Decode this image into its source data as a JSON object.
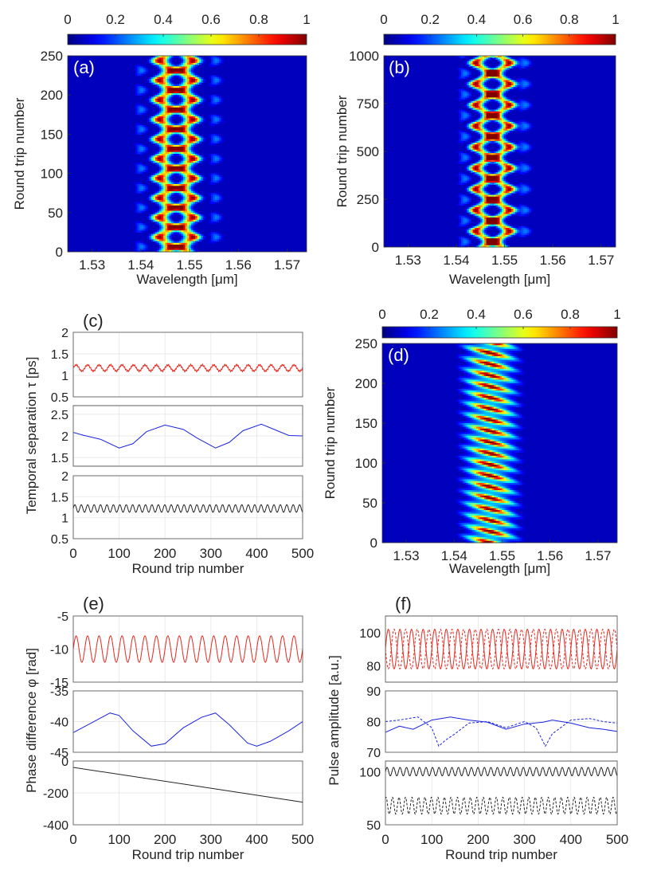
{
  "colorbar": {
    "ticks": [
      "0",
      "0.2",
      "0.4",
      "0.6",
      "0.8",
      "1"
    ]
  },
  "common": {
    "xlabel_wavelength": "Wavelength [μm]",
    "xlabel_roundtrip": "Round trip number",
    "ylabel_roundtrip": "Round trip number"
  },
  "chart_data": [
    {
      "id": "a",
      "type": "heatmap",
      "label": "(a)",
      "xlabel": "Wavelength [μm]",
      "ylabel": "Round trip number",
      "xlim": [
        1.525,
        1.574
      ],
      "ylim": [
        0,
        250
      ],
      "xticks": [
        1.53,
        1.54,
        1.55,
        1.56,
        1.57
      ],
      "xtick_labels": [
        "1.53",
        "1.54",
        "1.55",
        "1.56",
        "1.57"
      ],
      "yticks": [
        0,
        50,
        100,
        150,
        200,
        250
      ],
      "ytick_labels": [
        "0",
        "50",
        "100",
        "150",
        "200",
        "250"
      ],
      "colorbar_range": [
        0,
        1
      ],
      "features": {
        "lobes": [
          1.545,
          1.5495
        ],
        "oscillation_period": 25,
        "oscillation_amplitude": 0.0012,
        "lobe_width": 0.0016,
        "side_lobes": [
          1.5395,
          1.5548
        ]
      }
    },
    {
      "id": "b",
      "type": "heatmap",
      "label": "(b)",
      "xlabel": "Wavelength [μm]",
      "ylabel": "Round trip number",
      "xlim": [
        1.525,
        1.573
      ],
      "ylim": [
        0,
        1000
      ],
      "xticks": [
        1.53,
        1.54,
        1.55,
        1.56,
        1.57
      ],
      "xtick_labels": [
        "1.53",
        "1.54",
        "1.55",
        "1.56",
        "1.57"
      ],
      "yticks": [
        0,
        250,
        500,
        750,
        1000
      ],
      "ytick_labels": [
        "0",
        "250",
        "500",
        "750",
        "1000"
      ],
      "colorbar_range": [
        0,
        1
      ],
      "features": {
        "lobes": [
          1.5455,
          1.5495
        ],
        "oscillation_period": 110,
        "oscillation_amplitude": 0.0015,
        "lobe_width": 0.0014,
        "side_lobes": [
          1.541,
          1.5535
        ]
      }
    },
    {
      "id": "c",
      "type": "line",
      "label": "(c)",
      "ylabel": "Temporal separation τ [ps]",
      "xlabel": "Round trip number",
      "xlim": [
        0,
        500
      ],
      "xticks": [
        0,
        100,
        200,
        300,
        400,
        500
      ],
      "xtick_labels": [
        "0",
        "100",
        "200",
        "300",
        "400",
        "500"
      ],
      "panels": [
        {
          "ylim": [
            0.5,
            2
          ],
          "yticks": [
            0.5,
            1,
            1.5,
            2
          ],
          "ytick_labels": [
            "0.5",
            "1",
            "1.5",
            "2"
          ],
          "series": [
            {
              "name": "red",
              "color": "#e8281e",
              "mean": 1.17,
              "amplitude": 0.07,
              "period": 25,
              "dashed": false
            }
          ]
        },
        {
          "ylim": [
            1.3,
            2.7
          ],
          "yticks": [
            1.5,
            2,
            2.5
          ],
          "ytick_labels": [
            "1.5",
            "2",
            "2.5"
          ],
          "series": [
            {
              "name": "blue",
              "color": "#1a24e0",
              "points": [
                [
                  0,
                  2.08
                ],
                [
                  20,
                  2.02
                ],
                [
                  60,
                  1.92
                ],
                [
                  100,
                  1.72
                ],
                [
                  130,
                  1.82
                ],
                [
                  160,
                  2.1
                ],
                [
                  200,
                  2.25
                ],
                [
                  240,
                  2.15
                ],
                [
                  270,
                  1.95
                ],
                [
                  310,
                  1.72
                ],
                [
                  340,
                  1.85
                ],
                [
                  370,
                  2.12
                ],
                [
                  410,
                  2.27
                ],
                [
                  440,
                  2.14
                ],
                [
                  470,
                  2.01
                ],
                [
                  500,
                  2.0
                ]
              ]
            }
          ]
        },
        {
          "ylim": [
            0.5,
            2
          ],
          "yticks": [
            0.5,
            1,
            1.5,
            2
          ],
          "ytick_labels": [
            "0.5",
            "1",
            "1.5",
            "2"
          ],
          "series": [
            {
              "name": "black",
              "color": "#222222",
              "mean": 1.22,
              "amplitude": 0.09,
              "period": 14,
              "dashed": false
            }
          ]
        }
      ]
    },
    {
      "id": "d",
      "type": "heatmap",
      "label": "(d)",
      "xlabel": "Wavelength [μm]",
      "ylabel": "Round trip number",
      "xlim": [
        1.525,
        1.574
      ],
      "ylim": [
        0,
        250
      ],
      "xticks": [
        1.53,
        1.54,
        1.55,
        1.56,
        1.57
      ],
      "xtick_labels": [
        "1.53",
        "1.54",
        "1.55",
        "1.56",
        "1.57"
      ],
      "yticks": [
        0,
        50,
        100,
        150,
        200,
        250
      ],
      "ytick_labels": [
        "0",
        "50",
        "100",
        "150",
        "200",
        "250"
      ],
      "colorbar_range": [
        0,
        1
      ],
      "features": {
        "center": 1.5475,
        "stripe_period": 14,
        "stripe_width": 0.009
      }
    },
    {
      "id": "e",
      "type": "line",
      "label": "(e)",
      "ylabel": "Phase difference φ [rad]",
      "xlabel": "Round trip number",
      "xlim": [
        0,
        500
      ],
      "xticks": [
        0,
        100,
        200,
        300,
        400,
        500
      ],
      "xtick_labels": [
        "0",
        "100",
        "200",
        "300",
        "400",
        "500"
      ],
      "panels": [
        {
          "ylim": [
            -15,
            -5
          ],
          "yticks": [
            -15,
            -10,
            -5
          ],
          "ytick_labels": [
            "-15",
            "-10",
            "-5"
          ],
          "series": [
            {
              "name": "red",
              "color": "#e8281e",
              "mean": -10,
              "amplitude": 2.0,
              "period": 25,
              "dashed": false
            }
          ]
        },
        {
          "ylim": [
            -45,
            -35
          ],
          "yticks": [
            -45,
            -40,
            -35
          ],
          "ytick_labels": [
            "-45",
            "-40",
            "-35"
          ],
          "series": [
            {
              "name": "blue",
              "color": "#1a24e0",
              "points": [
                [
                  0,
                  -41.8
                ],
                [
                  40,
                  -40.2
                ],
                [
                  80,
                  -38.6
                ],
                [
                  100,
                  -39.0
                ],
                [
                  130,
                  -41.5
                ],
                [
                  170,
                  -44.0
                ],
                [
                  200,
                  -43.6
                ],
                [
                  240,
                  -41.0
                ],
                [
                  280,
                  -39.3
                ],
                [
                  310,
                  -38.6
                ],
                [
                  340,
                  -40.5
                ],
                [
                  380,
                  -43.5
                ],
                [
                  400,
                  -44.0
                ],
                [
                  430,
                  -43.2
                ],
                [
                  470,
                  -41.5
                ],
                [
                  500,
                  -40.0
                ]
              ]
            }
          ]
        },
        {
          "ylim": [
            -400,
            0
          ],
          "yticks": [
            -400,
            -200,
            0
          ],
          "ytick_labels": [
            "-400",
            "-200",
            "0"
          ],
          "series": [
            {
              "name": "black",
              "color": "#222222",
              "points": [
                [
                  0,
                  -40
                ],
                [
                  500,
                  -258
                ]
              ]
            }
          ]
        }
      ]
    },
    {
      "id": "f",
      "type": "line",
      "label": "(f)",
      "ylabel": "Pulse amplitude [a.u.]",
      "xlabel": "Round trip number",
      "xlim": [
        0,
        500
      ],
      "xticks": [
        0,
        100,
        200,
        300,
        400,
        500
      ],
      "xtick_labels": [
        "0",
        "100",
        "200",
        "300",
        "400",
        "500"
      ],
      "panels": [
        {
          "ylim": [
            70,
            110
          ],
          "yticks": [
            80,
            100
          ],
          "ytick_labels": [
            "80",
            "100"
          ],
          "series": [
            {
              "name": "red-solid",
              "color": "#e8281e",
              "mean": 90,
              "amplitude": 12,
              "period": 25,
              "phase": 0,
              "dashed": false
            },
            {
              "name": "red-dashed",
              "color": "#e8281e",
              "mean": 90,
              "amplitude": 12,
              "period": 25,
              "phase": 3.1416,
              "dashed": true
            }
          ]
        },
        {
          "ylim": [
            70,
            90
          ],
          "yticks": [
            70,
            80,
            90
          ],
          "ytick_labels": [
            "70",
            "80",
            "90"
          ],
          "series": [
            {
              "name": "blue-solid",
              "color": "#1a24e0",
              "dashed": false,
              "points": [
                [
                  0,
                  76.5
                ],
                [
                  30,
                  78.5
                ],
                [
                  60,
                  77.5
                ],
                [
                  100,
                  80.5
                ],
                [
                  140,
                  81.5
                ],
                [
                  180,
                  80.5
                ],
                [
                  220,
                  79.8
                ],
                [
                  260,
                  77.5
                ],
                [
                  300,
                  79.2
                ],
                [
                  340,
                  79.8
                ],
                [
                  360,
                  80.5
                ],
                [
                  400,
                  79.5
                ],
                [
                  440,
                  78.0
                ],
                [
                  470,
                  77.5
                ],
                [
                  500,
                  76.8
                ]
              ]
            },
            {
              "name": "blue-dashed",
              "color": "#1a24e0",
              "dashed": true,
              "points": [
                [
                  0,
                  80.0
                ],
                [
                  30,
                  80.5
                ],
                [
                  70,
                  81.5
                ],
                [
                  100,
                  78.0
                ],
                [
                  115,
                  72.0
                ],
                [
                  130,
                  74.0
                ],
                [
                  150,
                  76.0
                ],
                [
                  180,
                  79.5
                ],
                [
                  220,
                  80.0
                ],
                [
                  260,
                  78.0
                ],
                [
                  300,
                  80.0
                ],
                [
                  325,
                  78.0
                ],
                [
                  345,
                  72.0
                ],
                [
                  360,
                  76.0
                ],
                [
                  400,
                  80.5
                ],
                [
                  440,
                  81.0
                ],
                [
                  470,
                  80.0
                ],
                [
                  500,
                  79.5
                ]
              ]
            }
          ]
        },
        {
          "ylim": [
            50,
            110
          ],
          "yticks": [
            50,
            100
          ],
          "ytick_labels": [
            "50",
            "100"
          ],
          "series": [
            {
              "name": "black-solid",
              "color": "#222222",
              "mean": 100,
              "amplitude": 4,
              "period": 14,
              "phase": 0,
              "dashed": false
            },
            {
              "name": "black-dashed",
              "color": "#222222",
              "mean": 68,
              "amplitude": 8,
              "period": 14,
              "phase": 1.0,
              "dashed": true
            }
          ]
        }
      ]
    }
  ]
}
